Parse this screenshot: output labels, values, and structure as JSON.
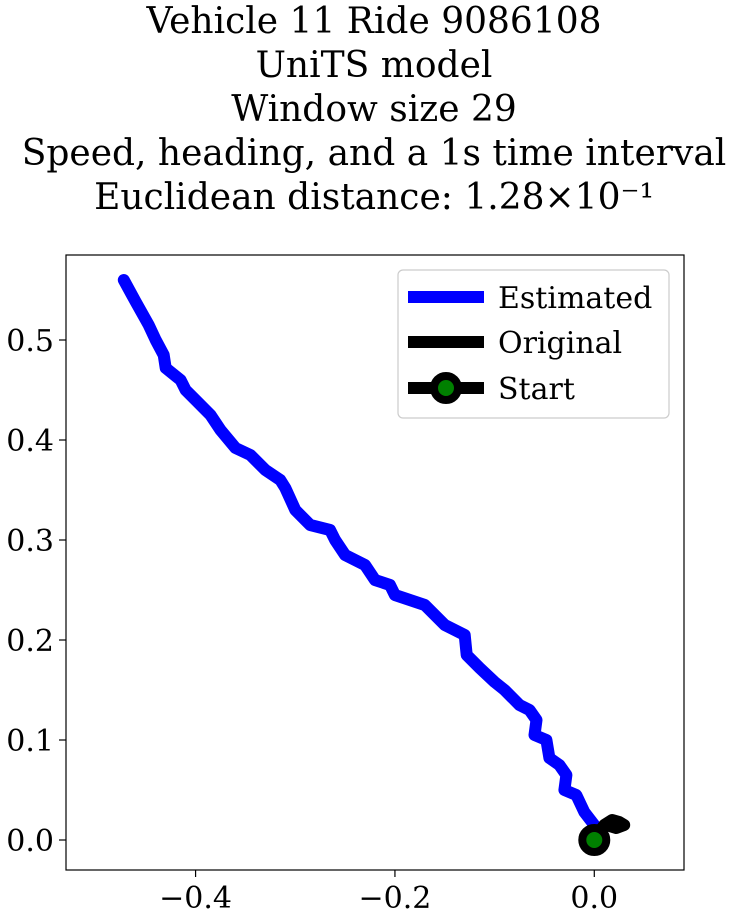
{
  "chart_data": {
    "type": "line",
    "title": [
      "Vehicle 11 Ride 9086108",
      "UniTS model",
      "Window size 29",
      "Speed, heading, and a 1s time interval",
      "Euclidean distance: 1.28×10⁻¹"
    ],
    "xlabel": "",
    "ylabel": "",
    "xlim": [
      -0.53,
      0.09
    ],
    "ylim": [
      -0.03,
      0.585
    ],
    "x_ticks": [
      -0.4,
      -0.2,
      0.0
    ],
    "x_tick_labels": [
      "−0.4",
      "−0.2",
      "0.0"
    ],
    "y_ticks": [
      0.0,
      0.1,
      0.2,
      0.3,
      0.4,
      0.5
    ],
    "y_tick_labels": [
      "0.0",
      "0.1",
      "0.2",
      "0.3",
      "0.4",
      "0.5"
    ],
    "grid": false,
    "legend_position": "top-right",
    "series": [
      {
        "name": "Estimated",
        "color": "#0000ff",
        "x": [
          0.0,
          -0.01,
          -0.018,
          -0.03,
          -0.028,
          -0.035,
          -0.045,
          -0.048,
          -0.06,
          -0.058,
          -0.065,
          -0.075,
          -0.09,
          -0.1,
          -0.115,
          -0.128,
          -0.13,
          -0.15,
          -0.155,
          -0.16,
          -0.17,
          -0.2,
          -0.205,
          -0.22,
          -0.23,
          -0.25,
          -0.26,
          -0.265,
          -0.285,
          -0.3,
          -0.31,
          -0.315,
          -0.33,
          -0.345,
          -0.36,
          -0.375,
          -0.385,
          -0.4,
          -0.41,
          -0.415,
          -0.43,
          -0.432,
          -0.44,
          -0.447,
          -0.46,
          -0.472
        ],
        "y": [
          0.015,
          0.028,
          0.045,
          0.05,
          0.065,
          0.075,
          0.082,
          0.1,
          0.105,
          0.12,
          0.13,
          0.135,
          0.15,
          0.158,
          0.172,
          0.185,
          0.205,
          0.215,
          0.22,
          0.225,
          0.235,
          0.245,
          0.255,
          0.26,
          0.275,
          0.285,
          0.3,
          0.31,
          0.315,
          0.33,
          0.352,
          0.36,
          0.37,
          0.385,
          0.392,
          0.41,
          0.425,
          0.44,
          0.45,
          0.46,
          0.472,
          0.485,
          0.5,
          0.515,
          0.538,
          0.56
        ]
      },
      {
        "name": "Original",
        "color": "#000000",
        "x": [
          0.0,
          0.005,
          0.01,
          0.018,
          0.025,
          0.03,
          0.022,
          0.012,
          0.005,
          0.0
        ],
        "y": [
          0.0,
          0.008,
          0.015,
          0.02,
          0.018,
          0.015,
          0.012,
          0.015,
          0.008,
          0.0
        ]
      },
      {
        "name": "Start",
        "color": "#000000",
        "marker_face_color": "#008000",
        "x": [
          0.0
        ],
        "y": [
          0.0
        ]
      }
    ]
  }
}
